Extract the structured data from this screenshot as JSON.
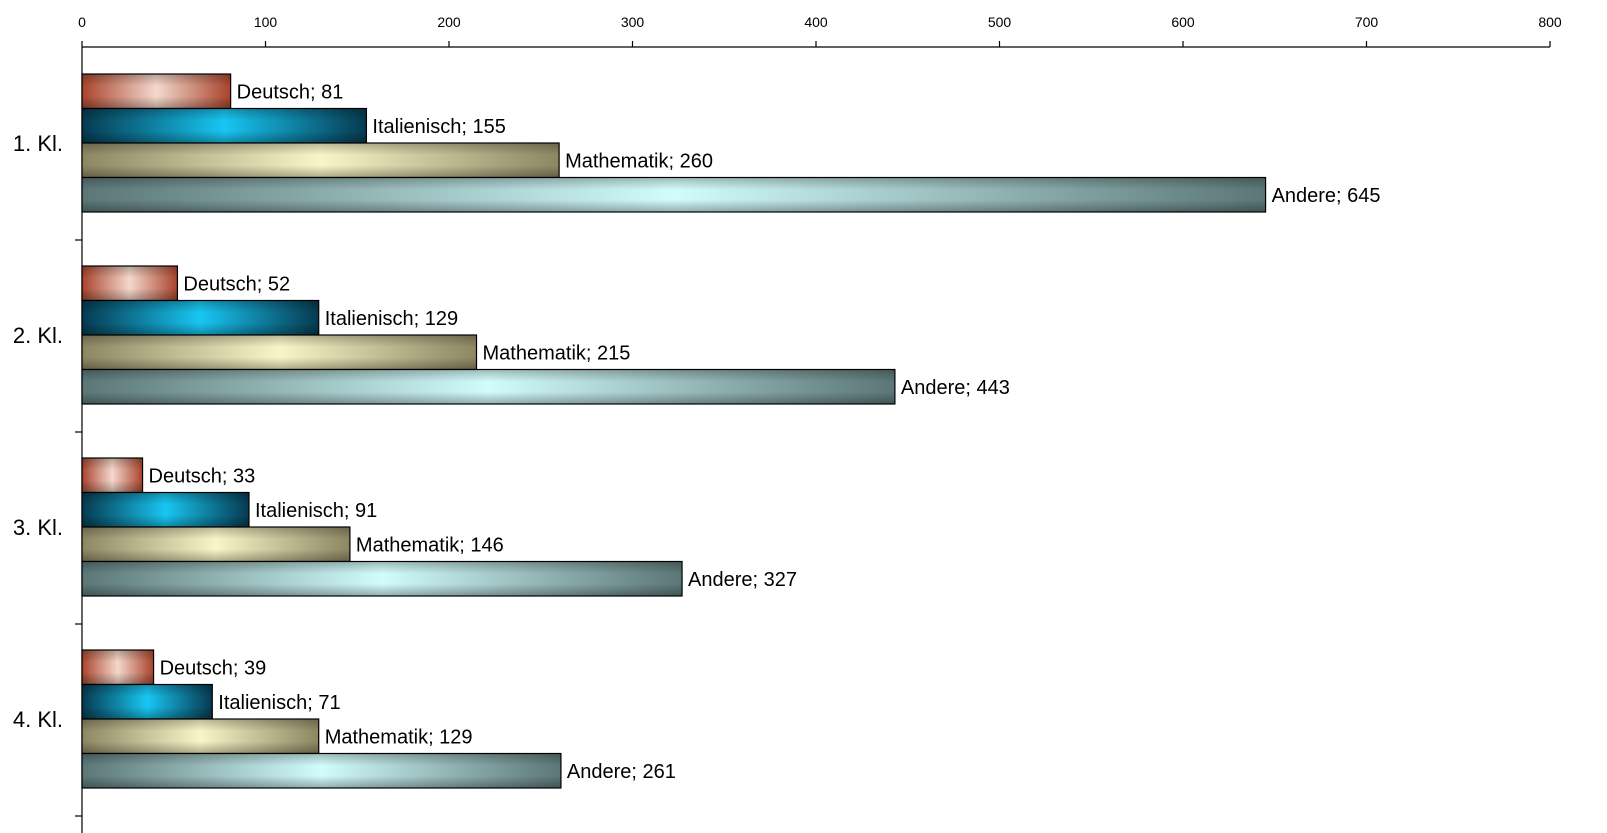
{
  "chart_data": {
    "type": "bar",
    "orientation": "horizontal",
    "categories": [
      "1. Kl.",
      "2. Kl.",
      "3. Kl.",
      "4. Kl."
    ],
    "series": [
      {
        "name": "Deutsch",
        "values": [
          81,
          52,
          33,
          39
        ],
        "color": "#b5533a"
      },
      {
        "name": "Italienisch",
        "values": [
          155,
          129,
          91,
          71
        ],
        "color": "#0d5d7c"
      },
      {
        "name": "Mathematik",
        "values": [
          260,
          215,
          146,
          129
        ],
        "color": "#9a9470"
      },
      {
        "name": "Andere",
        "values": [
          645,
          443,
          327,
          261
        ],
        "color": "#5f7e7e"
      }
    ],
    "xlim": [
      0,
      800
    ],
    "xticks": [
      0,
      100,
      200,
      300,
      400,
      500,
      600,
      700,
      800
    ],
    "x_axis_position": "top",
    "grid": false,
    "legend": "none",
    "data_label_separator": "; "
  }
}
